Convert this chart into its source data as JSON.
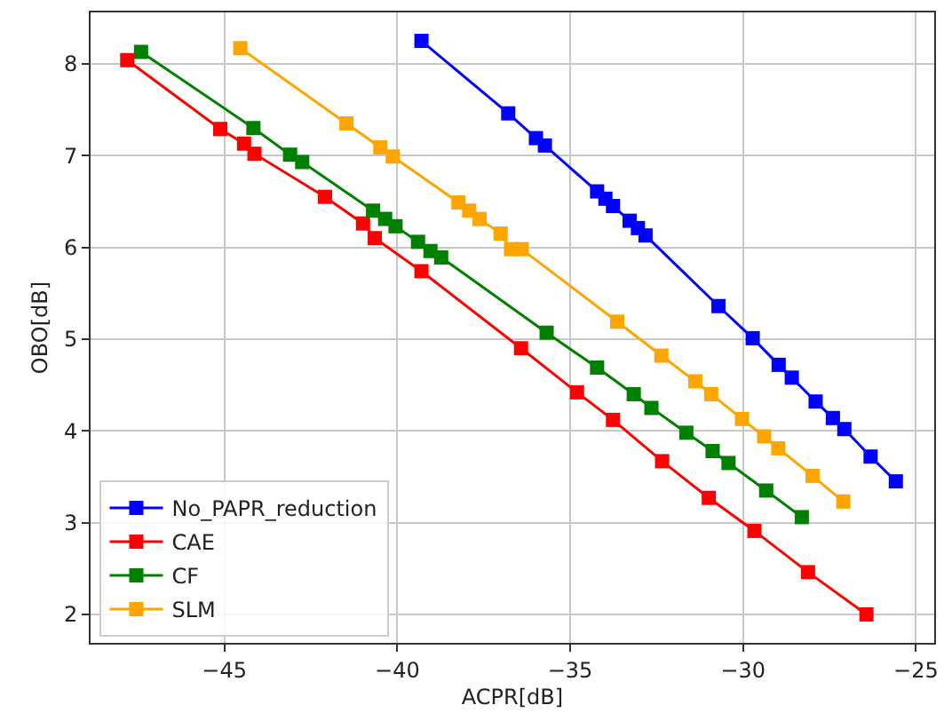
{
  "chart_data": {
    "type": "line",
    "xlabel": "ACPR[dB]",
    "ylabel": "OBO[dB]",
    "xlim": [
      -48.87,
      -24.47
    ],
    "xticks": [
      {
        "value": -45,
        "label": "−45"
      },
      {
        "value": -40,
        "label": "−40"
      },
      {
        "value": -35,
        "label": "−35"
      },
      {
        "value": -30,
        "label": "−30"
      },
      {
        "value": -25,
        "label": "−25"
      }
    ],
    "ylim": [
      1.69,
      8.56
    ],
    "yticks": [
      2,
      3,
      4,
      5,
      6,
      7,
      8
    ],
    "grid": true,
    "legend": "bottom left",
    "marker": "square",
    "line_style": "solid",
    "series": [
      {
        "name": "No_PAPR_reduction",
        "color": "#0000ff",
        "x": [
          -39.3,
          -36.79,
          -35.99,
          -35.73,
          -34.22,
          -33.98,
          -33.76,
          -33.28,
          -33.04,
          -32.82,
          -30.71,
          -29.72,
          -28.97,
          -28.59,
          -27.9,
          -27.4,
          -27.07,
          -26.31,
          -25.58
        ],
        "values": [
          8.25,
          7.46,
          7.19,
          7.11,
          6.61,
          6.53,
          6.45,
          6.29,
          6.21,
          6.13,
          5.36,
          5.01,
          4.72,
          4.58,
          4.32,
          4.14,
          4.02,
          3.72,
          3.45
        ]
      },
      {
        "name": "CAE",
        "color": "#ff0000",
        "x": [
          -47.81,
          -45.12,
          -44.43,
          -44.13,
          -42.09,
          -40.99,
          -40.65,
          -39.3,
          -36.42,
          -34.8,
          -33.76,
          -32.34,
          -30.99,
          -29.67,
          -28.12,
          -26.43
        ],
        "values": [
          8.04,
          7.29,
          7.13,
          7.02,
          6.55,
          6.26,
          6.1,
          5.74,
          4.9,
          4.42,
          4.12,
          3.67,
          3.27,
          2.91,
          2.46,
          2.0
        ]
      },
      {
        "name": "CF",
        "color": "#008000",
        "x": [
          -47.41,
          -44.16,
          -43.1,
          -42.75,
          -40.7,
          -40.35,
          -40.05,
          -39.4,
          -39.04,
          -38.73,
          -35.68,
          -34.22,
          -33.16,
          -32.65,
          -31.64,
          -30.88,
          -30.42,
          -29.33,
          -28.3
        ],
        "values": [
          8.13,
          7.3,
          7.01,
          6.93,
          6.4,
          6.31,
          6.23,
          6.06,
          5.96,
          5.89,
          5.07,
          4.69,
          4.4,
          4.25,
          3.98,
          3.78,
          3.65,
          3.35,
          3.06
        ]
      },
      {
        "name": "SLM",
        "color": "#ffa500",
        "x": [
          -44.54,
          -41.47,
          -40.49,
          -40.13,
          -38.23,
          -37.92,
          -37.62,
          -37.01,
          -36.71,
          -36.4,
          -33.64,
          -32.36,
          -31.38,
          -30.92,
          -30.03,
          -29.39,
          -28.98,
          -27.99,
          -27.1
        ],
        "values": [
          8.17,
          7.35,
          7.09,
          6.99,
          6.49,
          6.4,
          6.31,
          6.15,
          5.98,
          5.98,
          5.19,
          4.82,
          4.54,
          4.4,
          4.13,
          3.94,
          3.81,
          3.51,
          3.23
        ]
      }
    ]
  }
}
